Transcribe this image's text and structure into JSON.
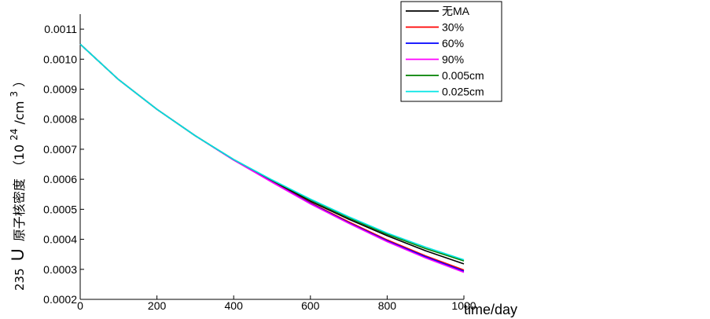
{
  "chart_data": {
    "type": "line",
    "xlabel": "time/day",
    "ylabel_prefix": "235",
    "ylabel_main": "U",
    "ylabel_cn": "原子核密度",
    "ylabel_unit_open": "（10",
    "ylabel_unit_exp": "24",
    "ylabel_unit_mid": "/cm",
    "ylabel_unit_exp2": "3",
    "ylabel_unit_close": "）",
    "xlim": [
      0,
      1000
    ],
    "ylim": [
      0.0002,
      0.00115
    ],
    "xticks": [
      0,
      200,
      400,
      600,
      800,
      1000
    ],
    "yticks": [
      0.0002,
      0.0003,
      0.0004,
      0.0005,
      0.0006,
      0.0007,
      0.0008,
      0.0009,
      0.001,
      0.0011
    ],
    "ytick_labels": [
      "0.0002",
      "0.0003",
      "0.0004",
      "0.0005",
      "0.0006",
      "0.0007",
      "0.0008",
      "0.0009",
      "0.0010",
      "0.0011"
    ],
    "grid": false,
    "legend_position": "top-right",
    "x": [
      0,
      100,
      200,
      300,
      400,
      500,
      600,
      700,
      800,
      900,
      1000
    ],
    "series": [
      {
        "name": "无MA",
        "color": "#000000",
        "values": [
          0.00105,
          0.000932,
          0.000833,
          0.000745,
          0.000665,
          0.000595,
          0.000527,
          0.000467,
          0.000412,
          0.000362,
          0.000318
        ]
      },
      {
        "name": "30%",
        "color": "#ff0000",
        "values": [
          0.00105,
          0.000932,
          0.000833,
          0.000745,
          0.000664,
          0.000592,
          0.000522,
          0.000458,
          0.000398,
          0.000345,
          0.000298
        ]
      },
      {
        "name": "60%",
        "color": "#0000ff",
        "values": [
          0.00105,
          0.000932,
          0.000833,
          0.000745,
          0.000664,
          0.000591,
          0.00052,
          0.000455,
          0.000395,
          0.000342,
          0.000294
        ]
      },
      {
        "name": "90%",
        "color": "#ff00ff",
        "values": [
          0.00105,
          0.000932,
          0.000833,
          0.000745,
          0.000664,
          0.00059,
          0.000518,
          0.000453,
          0.000392,
          0.000338,
          0.00029
        ]
      },
      {
        "name": "0.005cm",
        "color": "#008000",
        "values": [
          0.00105,
          0.000932,
          0.000833,
          0.000745,
          0.000666,
          0.000597,
          0.000532,
          0.000472,
          0.000417,
          0.000369,
          0.000328
        ]
      },
      {
        "name": "0.025cm",
        "color": "#00e5e5",
        "values": [
          0.00105,
          0.000932,
          0.000833,
          0.000745,
          0.000666,
          0.000598,
          0.000534,
          0.000475,
          0.000421,
          0.000374,
          0.000332
        ]
      }
    ]
  }
}
